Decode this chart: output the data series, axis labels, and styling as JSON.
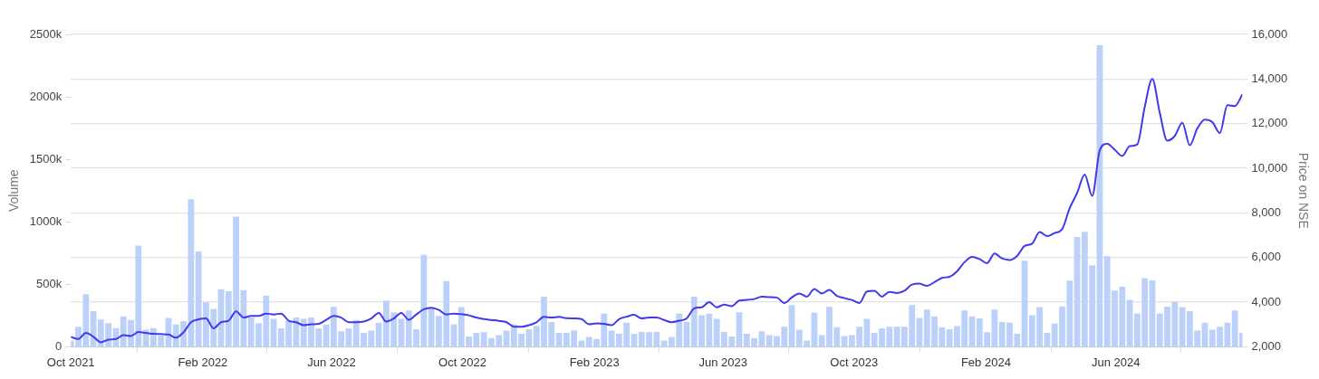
{
  "chart_data": {
    "type": "bar",
    "ylabel": "Volume",
    "y2label": "Price on NSE",
    "x": [
      "2021-10-01",
      "2021-10-08",
      "2021-10-15",
      "2021-10-22",
      "2021-10-29",
      "2021-11-05",
      "2021-11-12",
      "2021-11-19",
      "2021-11-26",
      "2021-12-03",
      "2021-12-10",
      "2021-12-17",
      "2021-12-24",
      "2021-12-31",
      "2022-01-07",
      "2022-01-14",
      "2022-01-21",
      "2022-01-28",
      "2022-02-04",
      "2022-02-11",
      "2022-02-18",
      "2022-02-25",
      "2022-03-04",
      "2022-03-11",
      "2022-03-18",
      "2022-03-25",
      "2022-04-01",
      "2022-04-08",
      "2022-04-15",
      "2022-04-22",
      "2022-04-29",
      "2022-05-06",
      "2022-05-13",
      "2022-05-20",
      "2022-05-27",
      "2022-06-03",
      "2022-06-10",
      "2022-06-17",
      "2022-06-24",
      "2022-07-01",
      "2022-07-08",
      "2022-07-15",
      "2022-07-22",
      "2022-07-29",
      "2022-08-05",
      "2022-08-12",
      "2022-08-19",
      "2022-08-26",
      "2022-09-02",
      "2022-09-09",
      "2022-09-16",
      "2022-09-23",
      "2022-09-30",
      "2022-10-07",
      "2022-10-14",
      "2022-10-21",
      "2022-10-28",
      "2022-11-04",
      "2022-11-11",
      "2022-11-18",
      "2022-11-25",
      "2022-12-02",
      "2022-12-09",
      "2022-12-16",
      "2022-12-23",
      "2022-12-30",
      "2023-01-06",
      "2023-01-13",
      "2023-01-20",
      "2023-01-27",
      "2023-02-03",
      "2023-02-10",
      "2023-02-17",
      "2023-02-24",
      "2023-03-03",
      "2023-03-10",
      "2023-03-17",
      "2023-03-24",
      "2023-03-31",
      "2023-04-07",
      "2023-04-14",
      "2023-04-21",
      "2023-04-28",
      "2023-05-05",
      "2023-05-12",
      "2023-05-19",
      "2023-05-26",
      "2023-06-02",
      "2023-06-09",
      "2023-06-16",
      "2023-06-23",
      "2023-06-30",
      "2023-07-07",
      "2023-07-14",
      "2023-07-21",
      "2023-07-28",
      "2023-08-04",
      "2023-08-11",
      "2023-08-18",
      "2023-08-25",
      "2023-09-01",
      "2023-09-08",
      "2023-09-15",
      "2023-09-22",
      "2023-09-29",
      "2023-10-06",
      "2023-10-13",
      "2023-10-20",
      "2023-10-27",
      "2023-11-03",
      "2023-11-10",
      "2023-11-17",
      "2023-11-24",
      "2023-12-01",
      "2023-12-08",
      "2023-12-15",
      "2023-12-22",
      "2023-12-29",
      "2024-01-05",
      "2024-01-12",
      "2024-01-19",
      "2024-01-26",
      "2024-02-02",
      "2024-02-09",
      "2024-02-16",
      "2024-02-23",
      "2024-03-01",
      "2024-03-08",
      "2024-03-15",
      "2024-03-22",
      "2024-03-29",
      "2024-04-05",
      "2024-04-12",
      "2024-04-19",
      "2024-04-26",
      "2024-05-03",
      "2024-05-10",
      "2024-05-17",
      "2024-05-24",
      "2024-05-31",
      "2024-06-07",
      "2024-06-14",
      "2024-06-21",
      "2024-06-28",
      "2024-07-05",
      "2024-07-12",
      "2024-07-19",
      "2024-07-26",
      "2024-08-02",
      "2024-08-09",
      "2024-08-16",
      "2024-08-23",
      "2024-08-30",
      "2024-09-06",
      "2024-09-13",
      "2024-09-20",
      "2024-09-27"
    ],
    "series": [
      {
        "color": "#bcd1fa",
        "values": [
          50000,
          160000,
          420000,
          285000,
          218000,
          190000,
          150000,
          243000,
          215000,
          810000,
          136000,
          150000,
          90000,
          230000,
          178000,
          205000,
          1180000,
          762000,
          356000,
          304000,
          460000,
          445000,
          1042000,
          453000,
          235000,
          190000,
          408000,
          223000,
          148000,
          210000,
          235000,
          223000,
          235000,
          148000,
          178000,
          320000,
          124000,
          148000,
          215000,
          111000,
          129000,
          193000,
          371000,
          277000,
          223000,
          290000,
          141000,
          735000,
          309000,
          248000,
          525000,
          181000,
          317000,
          82000,
          111000,
          116000,
          69000,
          94000,
          129000,
          178000,
          104000,
          141000,
          168000,
          401000,
          198000,
          111000,
          111000,
          131000,
          50000,
          79000,
          62000,
          265000,
          129000,
          106000,
          193000,
          104000,
          119000,
          116000,
          119000,
          50000,
          79000,
          265000,
          198000,
          401000,
          252000,
          265000,
          223000,
          119000,
          82000,
          277000,
          104000,
          69000,
          124000,
          94000,
          87000,
          161000,
          334000,
          136000,
          50000,
          272000,
          94000,
          320000,
          156000,
          87000,
          94000,
          161000,
          223000,
          111000,
          148000,
          161000,
          161000,
          161000,
          334000,
          230000,
          297000,
          243000,
          156000,
          141000,
          166000,
          290000,
          243000,
          228000,
          116000,
          297000,
          198000,
          193000,
          104000,
          688000,
          252000,
          317000,
          111000,
          186000,
          322000,
          530000,
          879000,
          921000,
          653000,
          2413000,
          725000,
          450000,
          480000,
          376000,
          267000,
          550000,
          532000,
          267000,
          322000,
          359000,
          317000,
          285000,
          129000,
          193000,
          136000,
          161000,
          193000,
          290000,
          111000
        ]
      },
      {
        "type": "line",
        "axis": "y2",
        "color": "#4239ee",
        "values": [
          2440,
          2350,
          2620,
          2450,
          2200,
          2320,
          2350,
          2520,
          2480,
          2660,
          2620,
          2580,
          2570,
          2550,
          2410,
          2650,
          3100,
          3230,
          3270,
          2830,
          3100,
          3170,
          3590,
          3310,
          3380,
          3380,
          3490,
          3450,
          3490,
          3170,
          3100,
          2970,
          3010,
          3030,
          3210,
          3380,
          3310,
          3100,
          3100,
          3130,
          3270,
          3520,
          3130,
          3270,
          3520,
          3210,
          3450,
          3680,
          3750,
          3650,
          3450,
          3490,
          3460,
          3410,
          3310,
          3240,
          3200,
          3160,
          3100,
          2900,
          2900,
          2970,
          3100,
          3340,
          3310,
          3340,
          3280,
          3270,
          3240,
          3010,
          3050,
          3030,
          2970,
          3240,
          3350,
          3430,
          3270,
          3310,
          3310,
          3200,
          3100,
          3170,
          3270,
          3720,
          3770,
          4000,
          3770,
          3890,
          3820,
          4070,
          4100,
          4140,
          4250,
          4230,
          4210,
          3960,
          4210,
          4390,
          4250,
          4590,
          4390,
          4550,
          4280,
          4180,
          4100,
          3960,
          4480,
          4510,
          4250,
          4460,
          4410,
          4510,
          4790,
          4830,
          4730,
          4900,
          5090,
          5140,
          5380,
          5790,
          6030,
          5930,
          5750,
          6180,
          5960,
          5890,
          6070,
          6520,
          6620,
          7140,
          6960,
          7100,
          7270,
          8210,
          8900,
          9720,
          8760,
          10800,
          11100,
          10830,
          10550,
          10990,
          11070,
          12760,
          14000,
          12480,
          11240,
          11450,
          12040,
          11030,
          11790,
          12180,
          12070,
          11580,
          12830,
          12790,
          13310
        ]
      }
    ],
    "xlim": [
      "2021-10-01",
      "2024-09-27"
    ],
    "xticks": [
      {
        "value": "2021-10-01",
        "label": "Oct 2021"
      },
      {
        "value": "2022-02-01",
        "label": "Feb 2022"
      },
      {
        "value": "2022-06-01",
        "label": "Jun 2022"
      },
      {
        "value": "2022-10-01",
        "label": "Oct 2022"
      },
      {
        "value": "2023-02-01",
        "label": "Feb 2023"
      },
      {
        "value": "2023-06-01",
        "label": "Jun 2023"
      },
      {
        "value": "2023-10-01",
        "label": "Oct 2023"
      },
      {
        "value": "2024-02-01",
        "label": "Feb 2024"
      },
      {
        "value": "2024-06-01",
        "label": "Jun 2024"
      }
    ],
    "ylim": [
      0,
      2500000
    ],
    "yticks": [
      {
        "value": 0,
        "label": "0"
      },
      {
        "value": 500000,
        "label": "500k"
      },
      {
        "value": 1000000,
        "label": "1000k"
      },
      {
        "value": 1500000,
        "label": "1500k"
      },
      {
        "value": 2000000,
        "label": "2000k"
      },
      {
        "value": 2500000,
        "label": "2500k"
      }
    ],
    "y2lim": [
      2000,
      16000
    ],
    "y2ticks": [
      {
        "value": 2000,
        "label": "2,000"
      },
      {
        "value": 4000,
        "label": "4,000"
      },
      {
        "value": 6000,
        "label": "6,000"
      },
      {
        "value": 8000,
        "label": "8,000"
      },
      {
        "value": 10000,
        "label": "10,000"
      },
      {
        "value": 12000,
        "label": "12,000"
      },
      {
        "value": 14000,
        "label": "14,000"
      },
      {
        "value": 16000,
        "label": "16,000"
      }
    ],
    "grid": "y",
    "legend": false,
    "marker": "none",
    "line_style": "solid"
  }
}
